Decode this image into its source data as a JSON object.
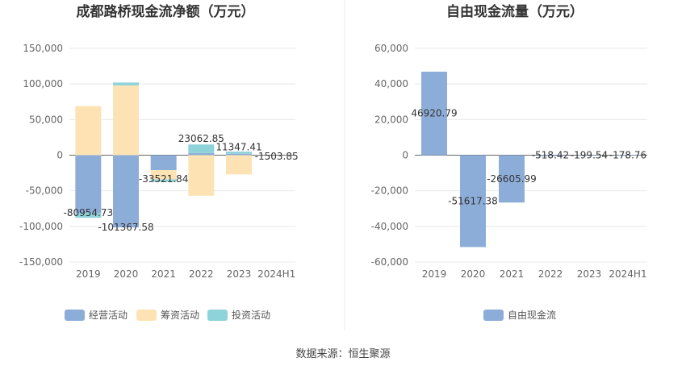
{
  "source": "数据来源：恒生聚源",
  "colors": {
    "operating": "#8dadd9",
    "financing": "#fde3b3",
    "investing": "#8fd3da",
    "free_cash_flow": "#8dadd9"
  },
  "chart_data": [
    {
      "type": "bar",
      "stacked": true,
      "title": "成都路桥现金流净额（万元）",
      "categories": [
        "2019",
        "2020",
        "2021",
        "2022",
        "2023",
        "2024H1"
      ],
      "ylim": [
        -150000,
        150000
      ],
      "yticks": [
        -150000,
        -100000,
        -50000,
        0,
        50000,
        100000,
        150000
      ],
      "ytick_labels": [
        "-150,000",
        "-100,000",
        "-50,000",
        "0",
        "50,000",
        "100,000",
        "150,000"
      ],
      "legend_position": "bottom",
      "grid": true,
      "series": [
        {
          "name": "经营活动",
          "color_key": "operating",
          "values": [
            -80954.73,
            -101367.58,
            -21000,
            3000,
            2000,
            0
          ]
        },
        {
          "name": "筹资活动",
          "color_key": "financing",
          "values": [
            69000,
            98000,
            -13000,
            -57000,
            -27000,
            0
          ]
        },
        {
          "name": "投资活动",
          "color_key": "investing",
          "values": [
            -7000,
            4000,
            -3500,
            12000,
            3000,
            0
          ]
        }
      ],
      "net_labels": [
        "-80954.73",
        "-101367.58",
        "-33521.84",
        "23062.85",
        "11347.41",
        "-1503.85"
      ],
      "net_values": [
        -80954.73,
        -101367.58,
        -33521.84,
        23062.85,
        11347.41,
        -1503.85
      ]
    },
    {
      "type": "bar",
      "title": "自由现金流量（万元）",
      "categories": [
        "2019",
        "2020",
        "2021",
        "2022",
        "2023",
        "2024H1"
      ],
      "ylim": [
        -60000,
        60000
      ],
      "yticks": [
        -60000,
        -40000,
        -20000,
        0,
        20000,
        40000,
        60000
      ],
      "ytick_labels": [
        "-60,000",
        "-40,000",
        "-20,000",
        "0",
        "20,000",
        "40,000",
        "60,000"
      ],
      "legend_position": "bottom",
      "grid": true,
      "series": [
        {
          "name": "自由现金流",
          "color_key": "free_cash_flow",
          "values": [
            46920.79,
            -51617.38,
            -26605.99,
            -518.42,
            -199.54,
            -178.76
          ]
        }
      ],
      "value_labels": [
        "46920.79",
        "-51617.38",
        "-26605.99",
        "-518.42",
        "-199.54",
        "-178.76"
      ]
    }
  ]
}
